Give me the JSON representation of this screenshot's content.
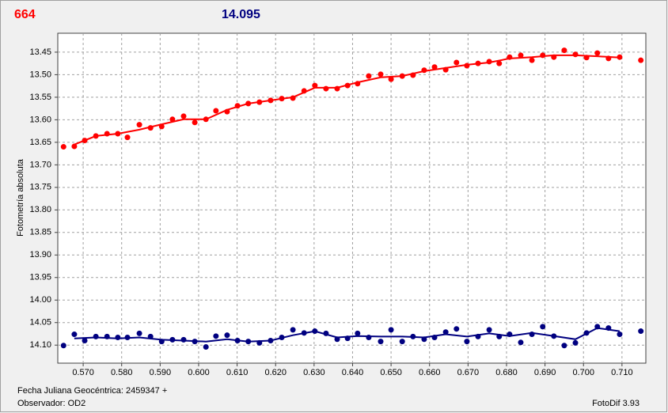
{
  "chart_data": {
    "type": "scatter",
    "title": "664",
    "subtitle": "14.095",
    "ylabel": "Fotometría absoluta",
    "xlabel": "Fecha Juliana Geocéntrica: 2459347 +",
    "footer": [
      "Observador: OD2",
      "FotoDif 3.93"
    ],
    "title_color": "#ff0000",
    "subtitle_color": "#000080",
    "xlim": [
      0.5634,
      0.7162
    ],
    "ylim": [
      13.408,
      14.14
    ],
    "y_inverted": true,
    "grid": true,
    "xticks": [
      {
        "value": 0.57,
        "label": "0.570"
      },
      {
        "value": 0.58,
        "label": "0.580"
      },
      {
        "value": 0.59,
        "label": "0.590"
      },
      {
        "value": 0.6,
        "label": "0.600"
      },
      {
        "value": 0.61,
        "label": "0.610"
      },
      {
        "value": 0.62,
        "label": "0.620"
      },
      {
        "value": 0.63,
        "label": "0.630"
      },
      {
        "value": 0.64,
        "label": "0.640"
      },
      {
        "value": 0.65,
        "label": "0.650"
      },
      {
        "value": 0.66,
        "label": "0.660"
      },
      {
        "value": 0.67,
        "label": "0.670"
      },
      {
        "value": 0.68,
        "label": "0.680"
      },
      {
        "value": 0.69,
        "label": "0.690"
      },
      {
        "value": 0.7,
        "label": "0.700"
      },
      {
        "value": 0.71,
        "label": "0.710"
      }
    ],
    "yticks": [
      13.45,
      {
        "value": 13.5,
        "label": "13.50"
      },
      13.55,
      {
        "value": 13.6,
        "label": "13.60"
      },
      13.65,
      {
        "value": 13.7,
        "label": "13.70"
      },
      13.75,
      {
        "value": 13.8,
        "label": "13.80"
      },
      13.85,
      {
        "value": 13.9,
        "label": "13.90"
      },
      13.95,
      {
        "value": 14,
        "label": "14.00"
      },
      14.05,
      {
        "value": 14.1,
        "label": "14.10"
      }
    ],
    "series": [
      {
        "style": "markers",
        "color": "#ff0000",
        "x": [
          0.5649,
          0.5677,
          0.5704,
          0.5733,
          0.5762,
          0.579,
          0.5815,
          0.5846,
          0.5875,
          0.5904,
          0.5932,
          0.5961,
          0.599,
          0.6019,
          0.6045,
          0.6074,
          0.6101,
          0.6129,
          0.6158,
          0.6187,
          0.6216,
          0.6245,
          0.6274,
          0.6302,
          0.6331,
          0.636,
          0.6387,
          0.6413,
          0.6442,
          0.6473,
          0.65,
          0.6529,
          0.6557,
          0.6586,
          0.6613,
          0.6642,
          0.667,
          0.6697,
          0.6726,
          0.6755,
          0.6781,
          0.6808,
          0.6837,
          0.6866,
          0.6894,
          0.6923,
          0.695,
          0.6979,
          0.7008,
          0.7036,
          0.7065,
          0.7094,
          0.7149
        ],
        "values": [
          13.66,
          13.659,
          13.646,
          13.636,
          13.631,
          13.631,
          13.639,
          13.611,
          13.618,
          13.615,
          13.599,
          13.592,
          13.606,
          13.599,
          13.58,
          13.582,
          13.569,
          13.564,
          13.561,
          13.557,
          13.553,
          13.552,
          13.536,
          13.524,
          13.531,
          13.531,
          13.524,
          13.52,
          13.503,
          13.499,
          13.51,
          13.503,
          13.501,
          13.49,
          13.483,
          13.489,
          13.473,
          13.48,
          13.475,
          13.471,
          13.475,
          13.461,
          13.457,
          13.468,
          13.457,
          13.461,
          13.446,
          13.455,
          13.462,
          13.452,
          13.464,
          13.461,
          13.468
        ]
      },
      {
        "style": "markers",
        "color": "#000080",
        "x": [
          0.5649,
          0.5677,
          0.5704,
          0.5733,
          0.5762,
          0.579,
          0.5815,
          0.5846,
          0.5875,
          0.5904,
          0.5932,
          0.5961,
          0.599,
          0.6019,
          0.6045,
          0.6074,
          0.6101,
          0.6129,
          0.6158,
          0.6187,
          0.6216,
          0.6245,
          0.6274,
          0.6302,
          0.6331,
          0.636,
          0.6387,
          0.6413,
          0.6442,
          0.6473,
          0.65,
          0.6529,
          0.6557,
          0.6586,
          0.6613,
          0.6642,
          0.667,
          0.6697,
          0.6726,
          0.6755,
          0.6781,
          0.6808,
          0.6837,
          0.6866,
          0.6894,
          0.6923,
          0.695,
          0.6979,
          0.7008,
          0.7036,
          0.7065,
          0.7094,
          0.7149
        ],
        "values": [
          14.101,
          14.076,
          14.09,
          14.081,
          14.081,
          14.083,
          14.083,
          14.074,
          14.081,
          14.092,
          14.088,
          14.088,
          14.092,
          14.104,
          14.08,
          14.078,
          14.09,
          14.092,
          14.095,
          14.09,
          14.083,
          14.066,
          14.073,
          14.069,
          14.074,
          14.087,
          14.085,
          14.074,
          14.083,
          14.092,
          14.066,
          14.092,
          14.081,
          14.087,
          14.083,
          14.071,
          14.064,
          14.092,
          14.081,
          14.066,
          14.081,
          14.076,
          14.094,
          14.076,
          14.059,
          14.08,
          14.101,
          14.095,
          14.073,
          14.059,
          14.062,
          14.076,
          14.069
        ]
      },
      {
        "style": "line",
        "color": "#ff0000",
        "x": [
          0.5677,
          0.5733,
          0.579,
          0.5846,
          0.5904,
          0.5961,
          0.6019,
          0.6074,
          0.6129,
          0.6187,
          0.6245,
          0.6302,
          0.636,
          0.6413,
          0.6473,
          0.6529,
          0.6586,
          0.6642,
          0.6697,
          0.6755,
          0.6808,
          0.6866,
          0.6923,
          0.6979,
          0.7036,
          0.7094
        ],
        "values": [
          13.655,
          13.636,
          13.631,
          13.622,
          13.61,
          13.599,
          13.599,
          13.578,
          13.564,
          13.557,
          13.55,
          13.529,
          13.529,
          13.517,
          13.506,
          13.503,
          13.492,
          13.485,
          13.478,
          13.473,
          13.464,
          13.461,
          13.457,
          13.457,
          13.459,
          13.462
        ]
      },
      {
        "style": "line",
        "color": "#000080",
        "x": [
          0.5677,
          0.5733,
          0.579,
          0.5846,
          0.5904,
          0.5961,
          0.6019,
          0.6074,
          0.6129,
          0.6187,
          0.6245,
          0.6302,
          0.636,
          0.6413,
          0.6473,
          0.6529,
          0.6586,
          0.6642,
          0.6697,
          0.6755,
          0.6808,
          0.6866,
          0.6923,
          0.6979,
          0.7036,
          0.7094
        ],
        "values": [
          14.085,
          14.083,
          14.085,
          14.083,
          14.088,
          14.09,
          14.092,
          14.087,
          14.092,
          14.09,
          14.078,
          14.069,
          14.083,
          14.08,
          14.081,
          14.081,
          14.083,
          14.076,
          14.081,
          14.074,
          14.08,
          14.073,
          14.08,
          14.087,
          14.062,
          14.069
        ]
      }
    ]
  }
}
